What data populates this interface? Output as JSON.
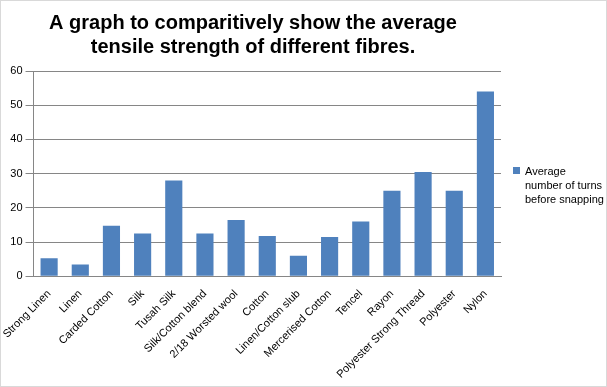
{
  "chart_data": {
    "type": "bar",
    "title": "A graph to comparitively show the average tensile strength of different fibres.",
    "categories": [
      "Strong Linen",
      "Linen",
      "Carded Cotton",
      "Silk",
      "Tusah Silk",
      "Silk/Cotton blend",
      "2/18 Worsted wool",
      "Cotton",
      "Linen/Cotton slub",
      "Mercerised Cotton",
      "Tencel",
      "Rayon",
      "Polyester Strong Thread",
      "Polyester",
      "Nylon"
    ],
    "series": [
      {
        "name": "Average number of turns before snapping",
        "color": "#4f81bd",
        "values": [
          5.3,
          3.5,
          14.8,
          12.5,
          28,
          12.5,
          16.5,
          11.8,
          6,
          11.5,
          16,
          25,
          30.5,
          25,
          54
        ]
      }
    ],
    "ylim": [
      0,
      60
    ],
    "yticks": [
      0,
      10,
      20,
      30,
      40,
      50,
      60
    ],
    "grid": true,
    "legend": "right"
  }
}
